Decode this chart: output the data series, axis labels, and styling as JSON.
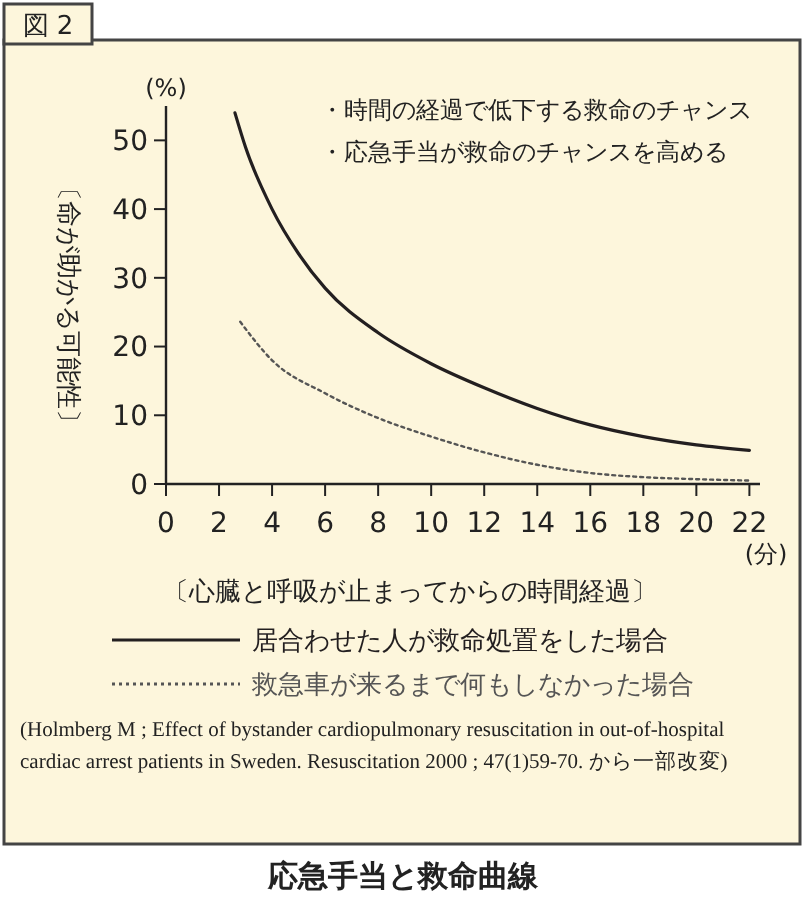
{
  "chart_data": {
    "type": "line",
    "title": "応急手当と救命曲線",
    "xlabel": "〔心臓と呼吸が止まってからの時間経過〕",
    "ylabel": "〔命が助かる可能性〕",
    "annotations": [
      "図 2",
      "・時間の経過で低下する救命のチャンス",
      "・応急手当が救命のチャンスを高める",
      "(%)",
      "(分)",
      "(Holmberg M ; Effect of bystander cardiopulmonary resuscitation in out-of-hospital cardiac arrest patients in Sweden. Resuscitation 2000 ; 47(1)59-70. から一部改変)"
    ],
    "xlim": [
      0,
      22.4
    ],
    "xticks": [
      0,
      2,
      4,
      6,
      8,
      10,
      12,
      14,
      16,
      18,
      20,
      22
    ],
    "ylim": [
      0,
      55
    ],
    "yticks": [
      0,
      10,
      20,
      30,
      40,
      50
    ],
    "grid": false,
    "legend": "bottom",
    "series": [
      {
        "name": "居合わせた人が救命処置をした場合",
        "color": "#231f20",
        "line_style": "solid",
        "x": [
          2.6,
          3,
          4,
          5,
          6,
          8,
          10,
          12,
          14,
          16,
          18,
          20,
          22
        ],
        "values": [
          54,
          49,
          40,
          33.5,
          28.5,
          22,
          17.5,
          14,
          11,
          8.6,
          6.9,
          5.7,
          4.9
        ]
      },
      {
        "name": "救急車が来るまで何もしなかった場合",
        "color": "#555555",
        "line_style": "dotted",
        "x": [
          2.8,
          4,
          6,
          8,
          10,
          12,
          14,
          16,
          18,
          20,
          22
        ],
        "values": [
          23.6,
          18,
          13.2,
          9.6,
          6.9,
          4.6,
          2.8,
          1.6,
          1,
          0.7,
          0.5
        ]
      }
    ]
  }
}
